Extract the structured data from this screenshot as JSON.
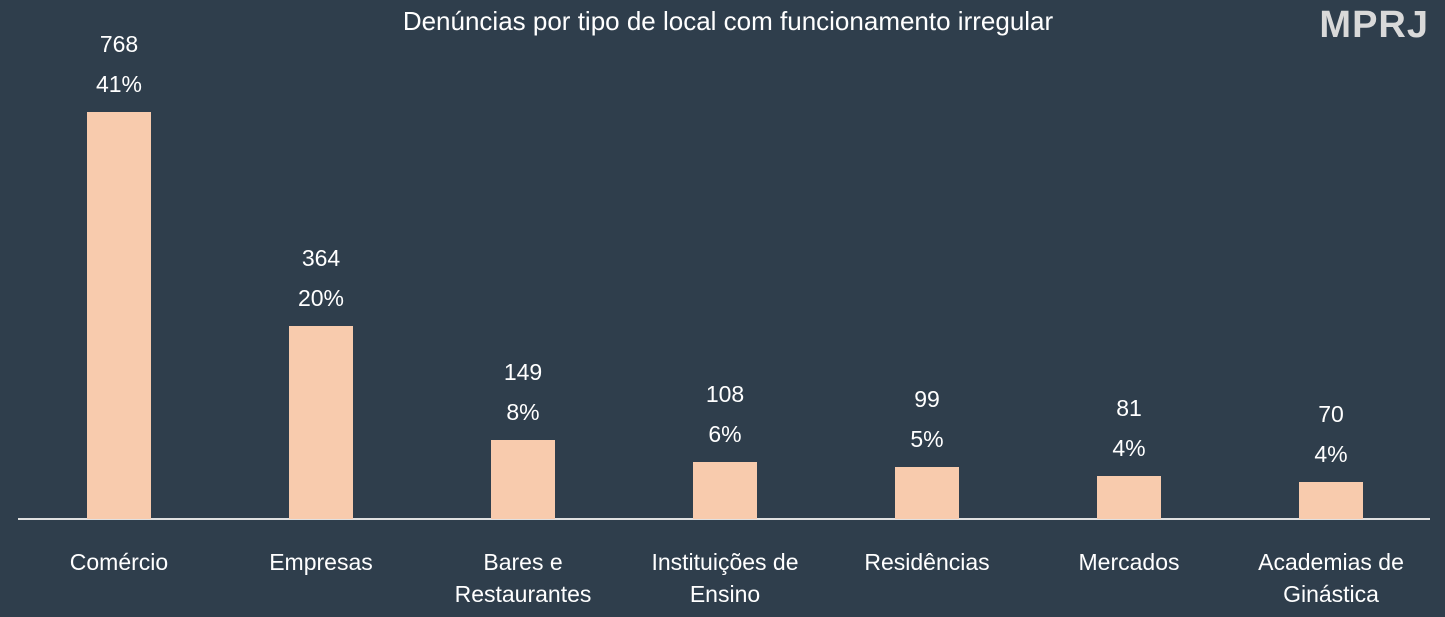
{
  "logo": "MPRJ",
  "chart_data": {
    "type": "bar",
    "title": "Denúncias por tipo de local  com funcionamento irregular",
    "categories": [
      "Comércio",
      "Empresas",
      "Bares e Restaurantes",
      "Instituições de Ensino",
      "Residências",
      "Mercados",
      "Academias de Ginástica"
    ],
    "values": [
      768,
      364,
      149,
      108,
      99,
      81,
      70
    ],
    "percent_labels": [
      "41%",
      "20%",
      "8%",
      "6%",
      "5%",
      "4%",
      "4%"
    ],
    "color": "#f8cbad",
    "ylim": [
      0,
      800
    ]
  }
}
